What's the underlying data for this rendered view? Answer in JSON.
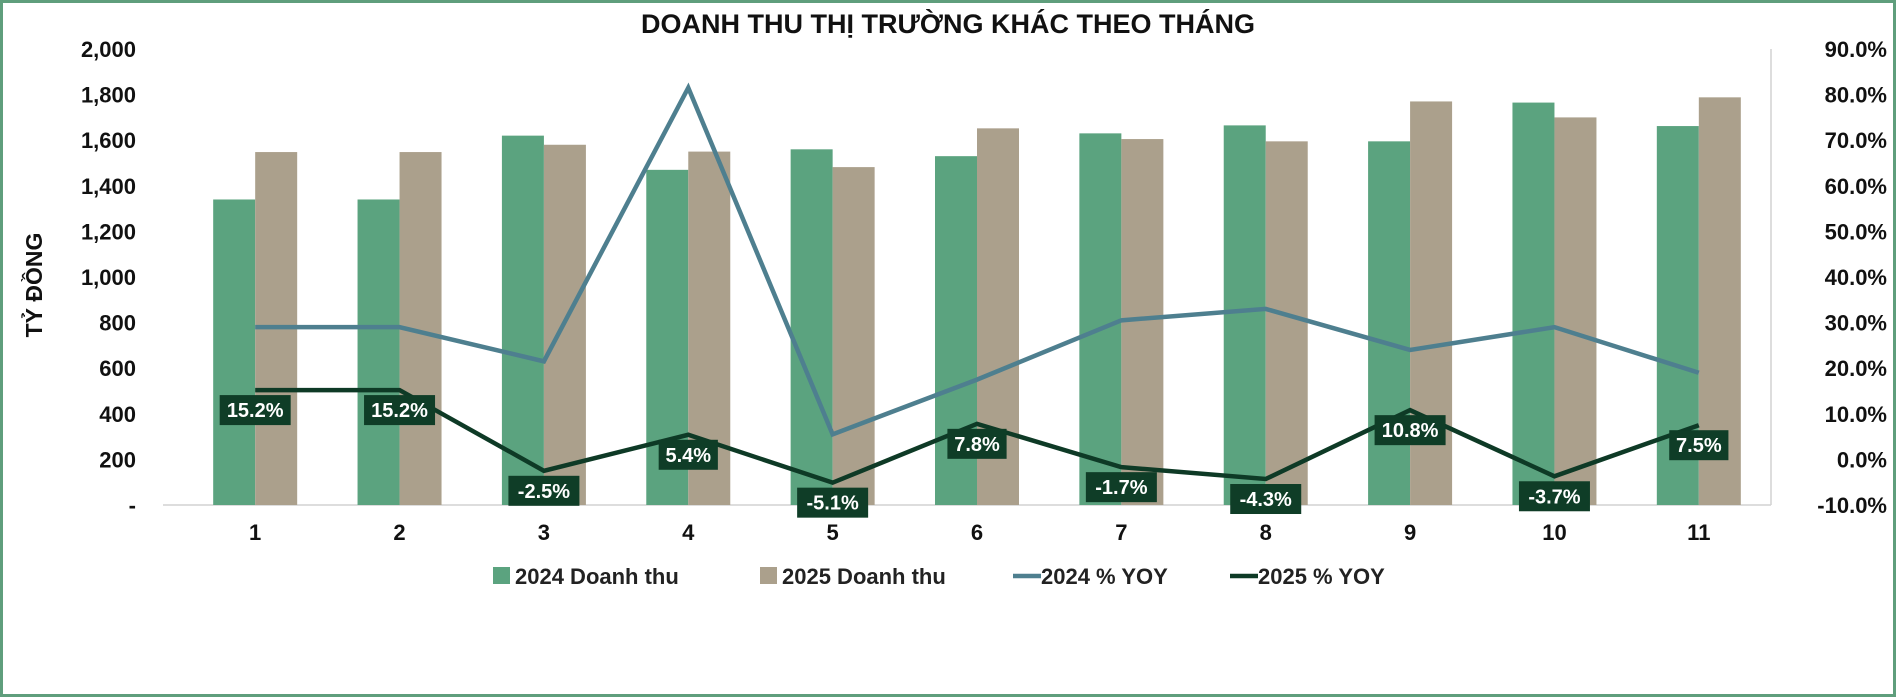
{
  "colors": {
    "bar_2024": "#5ba37f",
    "bar_2025": "#aba08c",
    "line_2024": "#4e7f8f",
    "line_2025": "#0e3a26",
    "label_box": "#0f3d27",
    "frame": "#5f9e7c"
  },
  "chart_data": {
    "type": "bar",
    "title": "DOANH THU THỊ TRƯỜNG KHÁC THEO THÁNG",
    "ylabel": "TỶ ĐỒNG",
    "xlabel": "",
    "categories": [
      "1",
      "2",
      "3",
      "4",
      "5",
      "6",
      "7",
      "8",
      "9",
      "10",
      "11"
    ],
    "ylim": [
      0,
      2000
    ],
    "y_ticks": [
      "-",
      "200",
      "400",
      "600",
      "800",
      "1,000",
      "1,200",
      "1,400",
      "1,600",
      "1,800",
      "2,000"
    ],
    "y2lim": [
      -10,
      90
    ],
    "y2_ticks": [
      "-10.0%",
      "0.0%",
      "10.0%",
      "20.0%",
      "30.0%",
      "40.0%",
      "50.0%",
      "60.0%",
      "70.0%",
      "80.0%",
      "90.0%"
    ],
    "grid": false,
    "legend_position": "bottom",
    "series": [
      {
        "name": "2024 Doanh thu",
        "type": "bar",
        "axis": "left",
        "values": [
          1340,
          1340,
          1620,
          1470,
          1560,
          1530,
          1630,
          1665,
          1595,
          1765,
          1662
        ]
      },
      {
        "name": "2025 Doanh thu",
        "type": "bar",
        "axis": "left",
        "values": [
          1548,
          1548,
          1580,
          1550,
          1482,
          1652,
          1605,
          1595,
          1770,
          1700,
          1788
        ]
      },
      {
        "name": "2024 % YOY",
        "type": "line",
        "axis": "right",
        "values": [
          29.0,
          29.0,
          21.5,
          81.5,
          5.5,
          17.5,
          30.5,
          33.0,
          24.0,
          29.0,
          19.0
        ]
      },
      {
        "name": "2025 % YOY",
        "type": "line",
        "axis": "right",
        "values": [
          15.2,
          15.2,
          -2.5,
          5.4,
          -5.1,
          7.8,
          -1.7,
          -4.3,
          10.8,
          -3.7,
          7.5
        ],
        "data_labels": [
          "15.2%",
          "15.2%",
          "-2.5%",
          "5.4%",
          "-5.1%",
          "7.8%",
          "-1.7%",
          "-4.3%",
          "10.8%",
          "-3.7%",
          "7.5%"
        ]
      }
    ]
  }
}
